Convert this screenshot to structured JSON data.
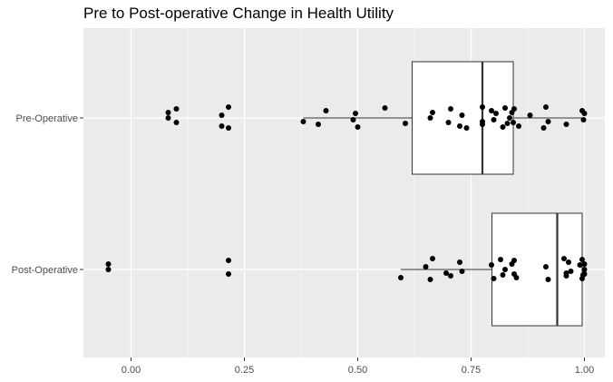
{
  "chart_data": {
    "type": "boxplot",
    "title": "Pre to Post-operative Change in Health Utility",
    "xlabel": "",
    "ylabel": "",
    "xlim": [
      -0.105,
      1.045
    ],
    "x_ticks": [
      0.0,
      0.25,
      0.5,
      0.75,
      1.0
    ],
    "x_tick_labels": [
      "0.00",
      "0.25",
      "0.50",
      "0.75",
      "1.00"
    ],
    "grid": true,
    "legend": "none",
    "colors": {
      "panel": "#ebebeb",
      "grid": "#ffffff",
      "box_fill": "#ffffff",
      "box_line": "#333333",
      "point": "#000000"
    },
    "categories": [
      "Pre-Operative",
      "Post-Operative"
    ],
    "boxes": [
      {
        "category": "Pre-Operative",
        "whisker_low": 0.38,
        "q1": 0.62,
        "median": 0.775,
        "q3": 0.843,
        "whisker_high": 1.0
      },
      {
        "category": "Post-Operative",
        "whisker_low": 0.595,
        "q1": 0.796,
        "median": 0.94,
        "q3": 0.995,
        "whisker_high": 1.0
      }
    ],
    "points": [
      {
        "category": "Pre-Operative",
        "values": [
          0.082,
          0.082,
          0.1,
          0.1,
          0.2,
          0.2,
          0.215,
          0.215,
          0.38,
          0.413,
          0.43,
          0.49,
          0.495,
          0.5,
          0.56,
          0.605,
          0.66,
          0.665,
          0.7,
          0.705,
          0.725,
          0.73,
          0.74,
          0.775,
          0.775,
          0.775,
          0.795,
          0.8,
          0.805,
          0.82,
          0.825,
          0.83,
          0.835,
          0.84,
          0.843,
          0.845,
          0.855,
          0.88,
          0.91,
          0.915,
          0.92,
          0.96,
          0.995,
          0.998,
          1.0
        ]
      },
      {
        "category": "Post-Operative",
        "values": [
          -0.05,
          -0.05,
          0.215,
          0.215,
          0.595,
          0.65,
          0.66,
          0.665,
          0.695,
          0.705,
          0.725,
          0.73,
          0.795,
          0.8,
          0.815,
          0.82,
          0.825,
          0.84,
          0.845,
          0.845,
          0.85,
          0.915,
          0.92,
          0.955,
          0.96,
          0.96,
          0.965,
          0.97,
          0.99,
          0.995,
          0.995,
          0.997,
          1.0,
          1.0,
          1.0
        ]
      }
    ]
  }
}
